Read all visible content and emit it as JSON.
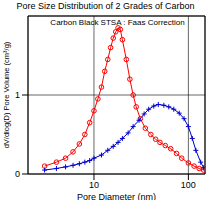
{
  "chart_data": {
    "type": "line",
    "title": "Pore Size Distribution of 2 Grades of Carbon",
    "subtitle": "Carbon Black STSA : Faas Correction",
    "x_label": "Pore Diameter (nm)",
    "y_label": "dV/dlog(D) Pore Volume (cm³/g)",
    "log": "x",
    "grid": true,
    "xlim": [
      2,
      150
    ],
    "xticks": [
      10,
      100
    ],
    "ylim": [
      0,
      2
    ],
    "yticks": [
      0,
      1
    ],
    "series": [
      {
        "color": "#ff0000",
        "marker": "circle",
        "x": [
          3,
          4,
          5,
          6,
          7,
          8,
          9,
          10,
          11,
          12,
          13,
          14,
          15,
          16,
          17,
          18,
          19,
          20,
          22,
          24,
          26,
          28,
          31,
          35,
          40,
          45,
          50,
          57,
          65,
          75,
          85,
          100,
          115,
          130,
          145
        ],
        "values": [
          0.1,
          0.15,
          0.2,
          0.28,
          0.38,
          0.5,
          0.65,
          0.8,
          0.95,
          1.1,
          1.3,
          1.45,
          1.6,
          1.72,
          1.8,
          1.85,
          1.83,
          1.7,
          1.45,
          1.2,
          1.0,
          0.85,
          0.7,
          0.58,
          0.5,
          0.44,
          0.4,
          0.36,
          0.32,
          0.26,
          0.2,
          0.14,
          0.1,
          0.07,
          0.05
        ]
      },
      {
        "color": "#0000cc",
        "marker": "plus",
        "x": [
          3,
          4,
          5,
          6,
          7,
          8,
          9,
          10,
          12,
          14,
          16,
          18,
          20,
          23,
          26,
          30,
          34,
          38,
          43,
          48,
          55,
          62,
          70,
          80,
          90,
          100,
          110,
          120,
          135,
          145
        ],
        "values": [
          0.05,
          0.07,
          0.09,
          0.11,
          0.13,
          0.15,
          0.17,
          0.2,
          0.24,
          0.3,
          0.35,
          0.4,
          0.45,
          0.52,
          0.6,
          0.68,
          0.76,
          0.82,
          0.86,
          0.88,
          0.87,
          0.85,
          0.82,
          0.77,
          0.7,
          0.6,
          0.45,
          0.3,
          0.15,
          0.08
        ]
      }
    ]
  }
}
